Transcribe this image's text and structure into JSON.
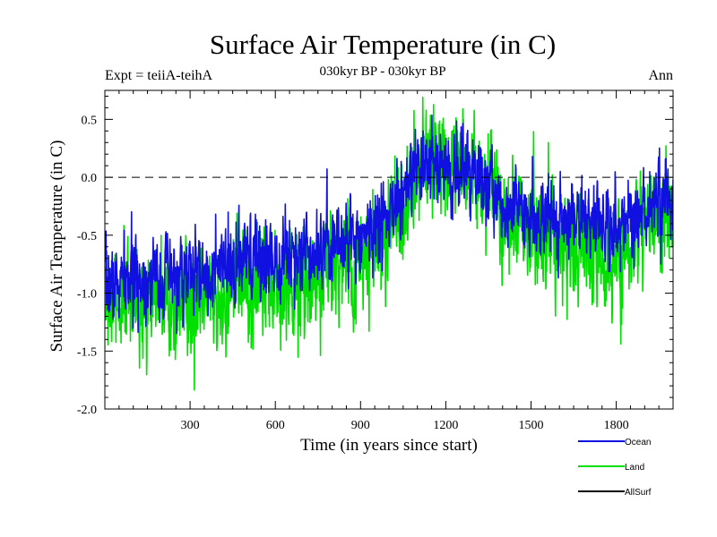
{
  "chart_data": {
    "type": "line",
    "title": "Surface Air Temperature (in C)",
    "subtitle": "030kyr BP - 030kyr BP",
    "expt_label": "Expt = teiiA-teihA",
    "period_label": "Ann",
    "xlabel": "Time (in years since start)",
    "ylabel": "Surface Air Temperature (in C)",
    "xlim": [
      0,
      2000
    ],
    "ylim": [
      -2.0,
      0.75
    ],
    "xticks": [
      300,
      600,
      900,
      1200,
      1500,
      1800
    ],
    "xtick_labels": [
      "300",
      "600",
      "900",
      "1200",
      "1500",
      "1800"
    ],
    "yticks": [
      -2.0,
      -1.5,
      -1.0,
      -0.5,
      0.0,
      0.5
    ],
    "ytick_labels": [
      "-2.0",
      "-1.5",
      "-1.0",
      "-0.5",
      "0.0",
      "0.5"
    ],
    "zero_line": 0.0,
    "trend_x": [
      0,
      100,
      200,
      300,
      400,
      500,
      600,
      700,
      800,
      900,
      1000,
      1050,
      1100,
      1150,
      1200,
      1250,
      1300,
      1350,
      1400,
      1500,
      1600,
      1700,
      1750,
      1800,
      1850,
      1900,
      1950,
      2000
    ],
    "series": [
      {
        "name": "Ocean",
        "color": "#1010e0",
        "trend_y": [
          -0.95,
          -0.88,
          -0.87,
          -0.85,
          -0.82,
          -0.73,
          -0.68,
          -0.62,
          -0.56,
          -0.5,
          -0.35,
          -0.15,
          0.02,
          0.08,
          0.08,
          0.06,
          0.02,
          -0.08,
          -0.22,
          -0.32,
          -0.33,
          -0.38,
          -0.42,
          -0.42,
          -0.35,
          -0.28,
          -0.2,
          -0.2
        ],
        "noise": 0.16,
        "seed": 7
      },
      {
        "name": "Land",
        "color": "#00e000",
        "trend_y": [
          -1.1,
          -1.05,
          -1.1,
          -1.12,
          -1.08,
          -0.95,
          -0.9,
          -0.85,
          -0.78,
          -0.7,
          -0.45,
          -0.15,
          0.1,
          0.18,
          0.2,
          0.15,
          0.05,
          -0.1,
          -0.3,
          -0.45,
          -0.52,
          -0.6,
          -0.72,
          -0.7,
          -0.55,
          -0.45,
          -0.35,
          -0.35
        ],
        "noise": 0.22,
        "seed": 31
      },
      {
        "name": "AllSurf",
        "color": "#000000",
        "trend_y": [],
        "noise": 0,
        "seed": 0
      }
    ]
  }
}
